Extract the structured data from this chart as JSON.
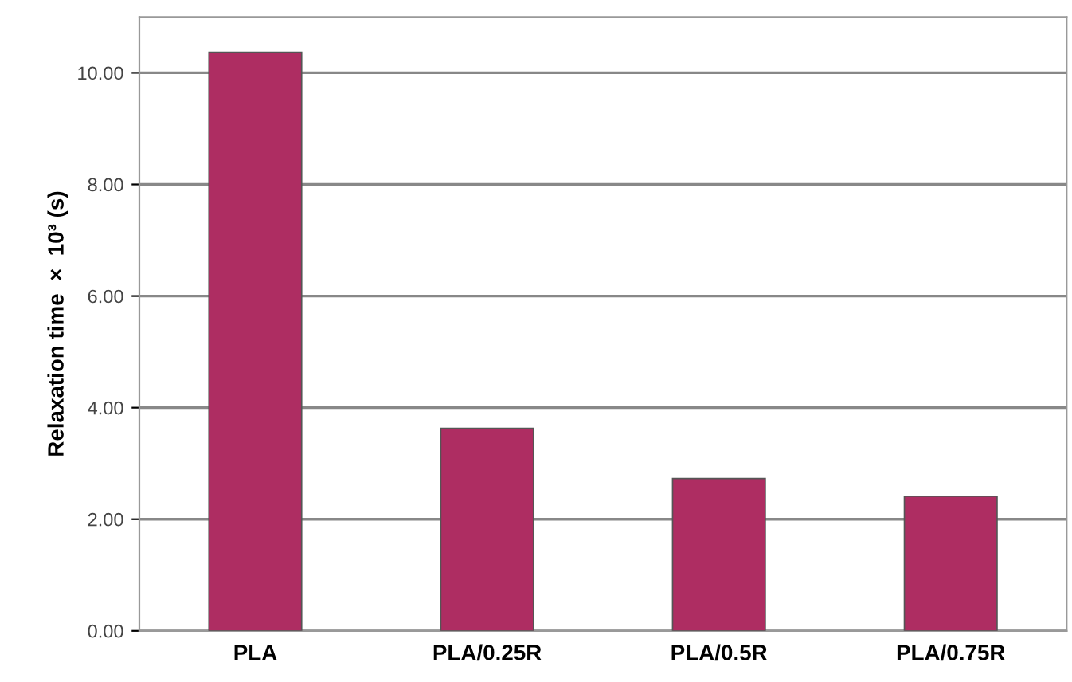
{
  "chart_data": {
    "type": "bar",
    "ylabel": "Relaxation time  ×  10³ (s)",
    "categories": [
      "PLA",
      "PLA/0.25R",
      "PLA/0.5R",
      "PLA/0.75R"
    ],
    "values": [
      10.37,
      3.63,
      2.73,
      2.41
    ],
    "color": "#ae2d62",
    "ylim": [
      0,
      11
    ],
    "yticks": [
      {
        "value": 0,
        "label": "0.00"
      },
      {
        "value": 2,
        "label": "2.00"
      },
      {
        "value": 4,
        "label": "4.00"
      },
      {
        "value": 6,
        "label": "6.00"
      },
      {
        "value": 8,
        "label": "8.00"
      },
      {
        "value": 10,
        "label": "10.00"
      }
    ],
    "grid": "y"
  }
}
